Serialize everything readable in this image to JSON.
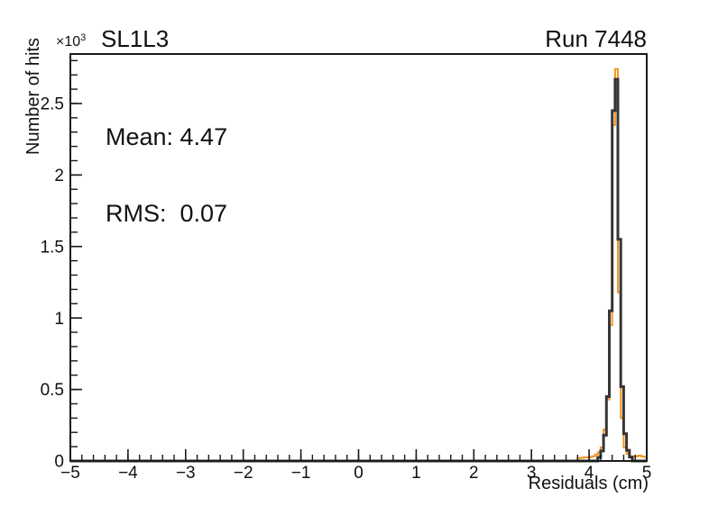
{
  "colors": {
    "background": "#ffffff",
    "axis": "#1a1a1a",
    "text": "#111111",
    "run_histogram": "#F7941E",
    "reference_histogram": "#363636"
  },
  "header": {
    "power_label": "×10",
    "power_exponent": "3",
    "hist_title": "SL1L3",
    "run_title": "Run 7448"
  },
  "stats": {
    "mean_line": "Mean: 4.47",
    "rms_line": "RMS:  0.07"
  },
  "chart_data": {
    "type": "line",
    "style": "step-histogram-outline",
    "title": "SL1L3",
    "subtitle": "Run 7448",
    "xlabel": "Residuals (cm)",
    "ylabel": "Number of hits",
    "y_axis_multiplier": "×10³",
    "grid": false,
    "legend_position": "none",
    "xlim": [
      -5,
      5
    ],
    "ylim": [
      0,
      2846
    ],
    "x_major_ticks": [
      -5,
      -4,
      -3,
      -2,
      -1,
      0,
      1,
      2,
      3,
      4,
      5
    ],
    "x_tick_labels": [
      "−5",
      "−4",
      "−3",
      "−2",
      "−1",
      "0",
      "1",
      "2",
      "3",
      "4",
      "5"
    ],
    "x_minor_step": 0.2,
    "y_major_ticks": [
      0,
      500,
      1000,
      1500,
      2000,
      2500
    ],
    "y_tick_labels": [
      "0",
      "0.5",
      "1",
      "1.5",
      "2",
      "2.5"
    ],
    "y_minor_step": 100,
    "annotations": {
      "mean": 4.47,
      "rms": 0.07
    },
    "series": [
      {
        "name": "run-histogram",
        "color": "#F7941E",
        "line_width": 2,
        "x_start": 3.8,
        "bin_width": 0.05,
        "values": [
          20,
          22,
          25,
          25,
          28,
          32,
          45,
          60,
          95,
          220,
          430,
          950,
          2350,
          2740,
          1180,
          300,
          95,
          50,
          32,
          30,
          32,
          38,
          32,
          28
        ]
      },
      {
        "name": "reference-histogram",
        "color": "#363636",
        "line_width": 3,
        "x_start": 4.15,
        "bin_width": 0.05,
        "values": [
          25,
          70,
          180,
          450,
          1050,
          2450,
          2670,
          1550,
          520,
          190,
          75,
          28
        ]
      }
    ]
  }
}
